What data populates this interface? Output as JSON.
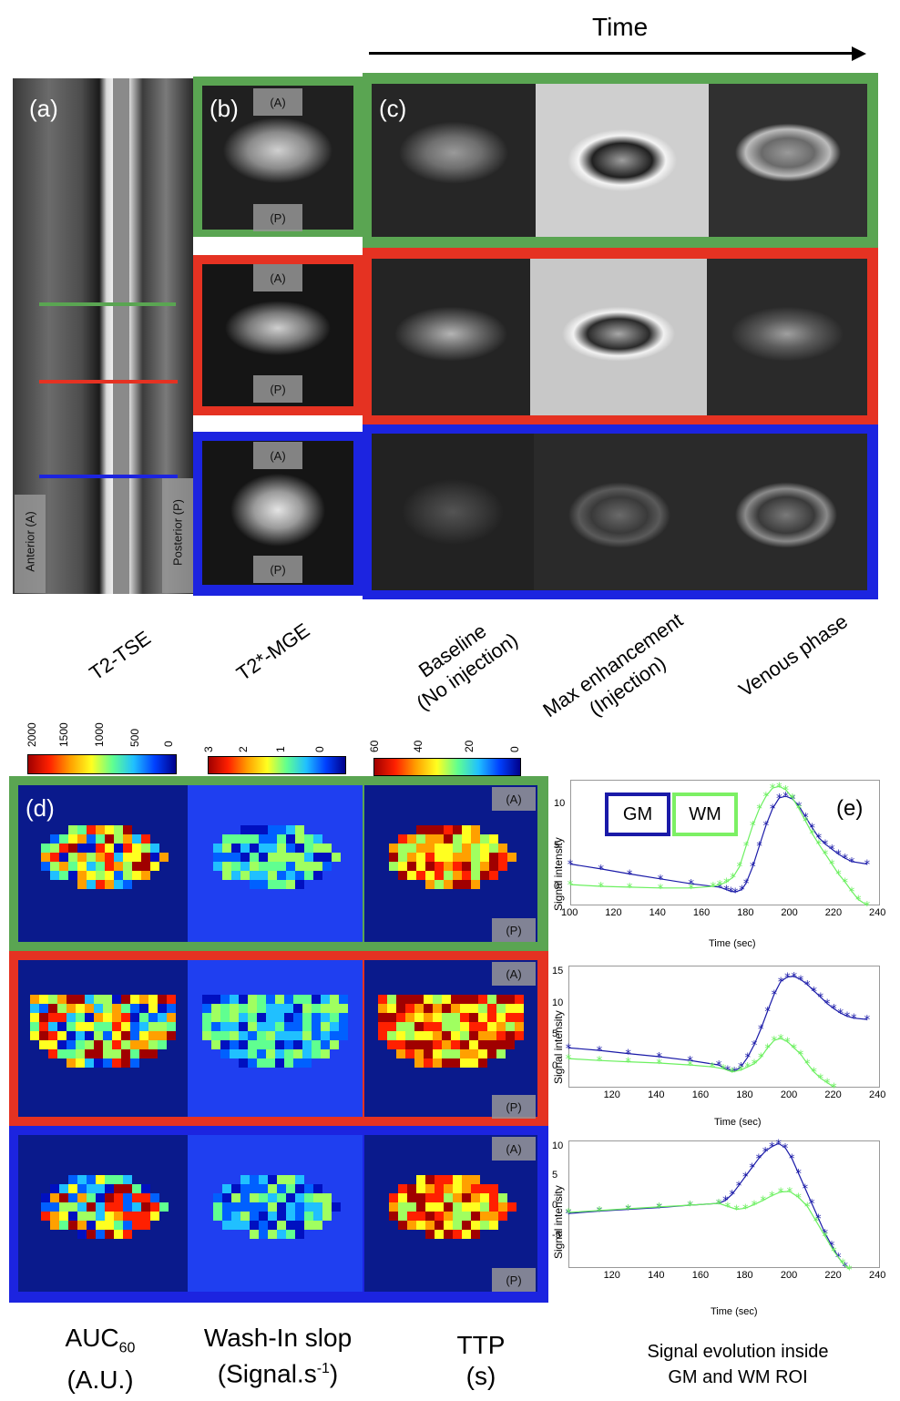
{
  "header": {
    "time_label": "Time"
  },
  "panels": {
    "a": "(a)",
    "b": "(b)",
    "c": "(c)",
    "d": "(d)",
    "e": "(e)"
  },
  "orient": {
    "A": "(A)",
    "P": "(P)",
    "anterior": "Anterior (A)",
    "posterior": "Posterior (P)"
  },
  "columns": {
    "t2tse": "T2-TSE",
    "t2mge": "T2*-MGE",
    "baseline_1": "Baseline",
    "baseline_2": "(No injection)",
    "max_1": "Max enhancement",
    "max_2": "(Injection)",
    "venous": "Venous phase"
  },
  "colorbars": {
    "auc": [
      "2000",
      "1500",
      "1000",
      "500",
      "0"
    ],
    "wash": [
      "3",
      "2",
      "1",
      "0"
    ],
    "ttp": [
      "60",
      "40",
      "20",
      "0"
    ]
  },
  "bottom": {
    "auc_main": "AUC",
    "auc_sub": "60",
    "auc_unit": "(A.U.)",
    "wash_main": "Wash-In slop",
    "wash_unit_pre": "(Signal.s",
    "wash_unit_sup": "-1",
    "wash_unit_post": ")",
    "ttp_main": "TTP",
    "ttp_unit": "(s)",
    "sig_1": "Signal evolution inside",
    "sig_2": "GM and WM ROI"
  },
  "legend": {
    "gm": "GM",
    "wm": "WM"
  },
  "colors": {
    "green": "#5aa552",
    "red": "#e53222",
    "blue": "#1c24e0",
    "gm_line": "#1a1aa8",
    "wm_line": "#6cf060"
  },
  "chart_data": [
    {
      "type": "line",
      "xlabel": "Time (sec)",
      "ylabel": "Signal intensity",
      "xlim": [
        100,
        240
      ],
      "ylim": [
        -2,
        13
      ],
      "xticks": [
        "100",
        "120",
        "140",
        "160",
        "180",
        "200",
        "220",
        "240"
      ],
      "yticks": [
        "10",
        "5",
        "0"
      ],
      "series": [
        {
          "name": "GM",
          "x": [
            100,
            114,
            127,
            141,
            155,
            168,
            171,
            173,
            175,
            178,
            180,
            183,
            186,
            189,
            192,
            195,
            198,
            201,
            204,
            207,
            210,
            213,
            216,
            219,
            222,
            225,
            228,
            235
          ],
          "y": [
            2.8,
            2.2,
            1.6,
            1.0,
            0.4,
            0.0,
            -0.3,
            -0.5,
            -0.6,
            -0.3,
            0.5,
            2.5,
            5.0,
            7.5,
            9.5,
            10.8,
            11.0,
            10.7,
            9.8,
            8.5,
            7.2,
            6.0,
            5.2,
            4.6,
            4.0,
            3.5,
            3.1,
            2.8
          ]
        },
        {
          "name": "WM",
          "x": [
            100,
            114,
            127,
            141,
            155,
            165,
            168,
            171,
            174,
            177,
            180,
            183,
            186,
            189,
            192,
            195,
            198,
            201,
            204,
            207,
            210,
            213,
            216,
            219,
            222,
            225,
            228,
            231,
            235
          ],
          "y": [
            0.3,
            0.1,
            0.0,
            -0.1,
            -0.1,
            0.1,
            0.3,
            0.6,
            1.2,
            2.5,
            5.0,
            7.5,
            9.5,
            11.0,
            12.0,
            12.2,
            11.8,
            10.8,
            9.5,
            8.0,
            6.5,
            5.2,
            4.0,
            2.8,
            1.6,
            0.6,
            -0.5,
            -1.5,
            -2.2
          ]
        }
      ]
    },
    {
      "type": "line",
      "xlabel": "Time (sec)",
      "ylabel": "Signal intensity",
      "xlim": [
        100,
        240
      ],
      "ylim": [
        -3,
        16
      ],
      "xticks": [
        "120",
        "140",
        "160",
        "180",
        "200",
        "220",
        "240"
      ],
      "yticks": [
        "15",
        "10",
        "5",
        "0"
      ],
      "series": [
        {
          "name": "GM",
          "x": [
            100,
            114,
            127,
            141,
            155,
            168,
            172,
            175,
            178,
            181,
            184,
            187,
            190,
            193,
            196,
            199,
            202,
            205,
            208,
            211,
            214,
            217,
            220,
            223,
            226,
            229,
            235
          ],
          "y": [
            3.0,
            2.6,
            2.1,
            1.6,
            1.0,
            0.3,
            -0.5,
            -0.7,
            0.0,
            1.5,
            3.5,
            6.0,
            8.8,
            11.5,
            13.5,
            14.2,
            14.3,
            13.8,
            13.0,
            12.0,
            11.0,
            10.0,
            9.2,
            8.5,
            8.0,
            7.7,
            7.5
          ]
        },
        {
          "name": "WM",
          "x": [
            100,
            114,
            127,
            141,
            155,
            165,
            170,
            174,
            178,
            181,
            184,
            187,
            190,
            193,
            196,
            199,
            202,
            205,
            208,
            211,
            214,
            217,
            220
          ],
          "y": [
            1.3,
            1.0,
            0.8,
            0.6,
            0.3,
            0.0,
            -0.3,
            -0.8,
            -0.5,
            0.0,
            0.5,
            1.5,
            3.0,
            4.2,
            4.5,
            4.0,
            3.0,
            2.0,
            0.5,
            -0.8,
            -1.8,
            -2.5,
            -3.2
          ]
        }
      ]
    },
    {
      "type": "line",
      "xlabel": "Time (sec)",
      "ylabel": "Signal intensity",
      "xlim": [
        100,
        240
      ],
      "ylim": [
        -10,
        11
      ],
      "xticks": [
        "120",
        "140",
        "160",
        "180",
        "200",
        "220",
        "240"
      ],
      "yticks": [
        "10",
        "5",
        "0",
        "-5"
      ],
      "series": [
        {
          "name": "GM",
          "x": [
            100,
            114,
            127,
            141,
            155,
            168,
            171,
            174,
            177,
            180,
            183,
            186,
            189,
            192,
            195,
            198,
            201,
            204,
            207,
            210,
            213,
            216,
            219,
            222,
            225
          ],
          "y": [
            -1.2,
            -0.8,
            -0.5,
            -0.2,
            0.2,
            0.5,
            1.0,
            2.0,
            3.5,
            5.0,
            6.5,
            8.0,
            9.2,
            10.0,
            10.5,
            9.8,
            8.0,
            5.5,
            3.0,
            0.5,
            -2.0,
            -4.5,
            -6.5,
            -8.5,
            -10.0
          ]
        },
        {
          "name": "WM",
          "x": [
            100,
            114,
            127,
            141,
            155,
            168,
            172,
            176,
            180,
            184,
            188,
            192,
            196,
            200,
            204,
            208,
            212,
            216,
            220,
            224,
            227
          ],
          "y": [
            -1.0,
            -0.7,
            -0.4,
            -0.1,
            0.2,
            0.5,
            0.0,
            -0.5,
            -0.3,
            0.3,
            1.0,
            1.8,
            2.4,
            2.5,
            1.5,
            0.0,
            -2.5,
            -5.0,
            -7.5,
            -9.5,
            -10.5
          ]
        }
      ]
    }
  ]
}
